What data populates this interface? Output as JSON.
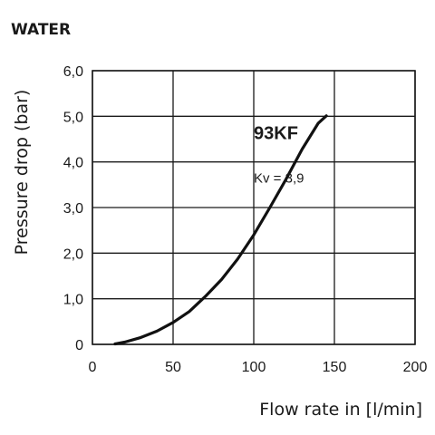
{
  "heading": "WATER",
  "chart_data": {
    "type": "line",
    "title": "",
    "xlabel": "Flow rate in [l/min]",
    "ylabel": "Pressure drop (bar)",
    "xlim": [
      0,
      200
    ],
    "ylim": [
      0,
      6
    ],
    "x_ticks": [
      0,
      50,
      100,
      150,
      200
    ],
    "x_tick_labels": [
      "0",
      "50",
      "100",
      "150",
      "200"
    ],
    "y_ticks": [
      0,
      1,
      2,
      3,
      4,
      5,
      6
    ],
    "y_tick_labels": [
      "0",
      "1,0",
      "2,0",
      "3,0",
      "4,0",
      "5,0",
      "6,0"
    ],
    "grid": true,
    "annotations": [
      {
        "text": "93KF",
        "x": 100,
        "y": 4.5
      },
      {
        "text": "Kv = 3,9",
        "x": 100,
        "y": 3.55
      }
    ],
    "series": [
      {
        "color": "#111111",
        "points": [
          [
            14,
            0.01
          ],
          [
            20,
            0.05
          ],
          [
            30,
            0.15
          ],
          [
            40,
            0.29
          ],
          [
            50,
            0.48
          ],
          [
            60,
            0.72
          ],
          [
            70,
            1.05
          ],
          [
            80,
            1.42
          ],
          [
            90,
            1.87
          ],
          [
            100,
            2.4
          ],
          [
            110,
            3.0
          ],
          [
            120,
            3.62
          ],
          [
            130,
            4.28
          ],
          [
            140,
            4.85
          ],
          [
            145,
            5.01
          ]
        ]
      }
    ]
  }
}
